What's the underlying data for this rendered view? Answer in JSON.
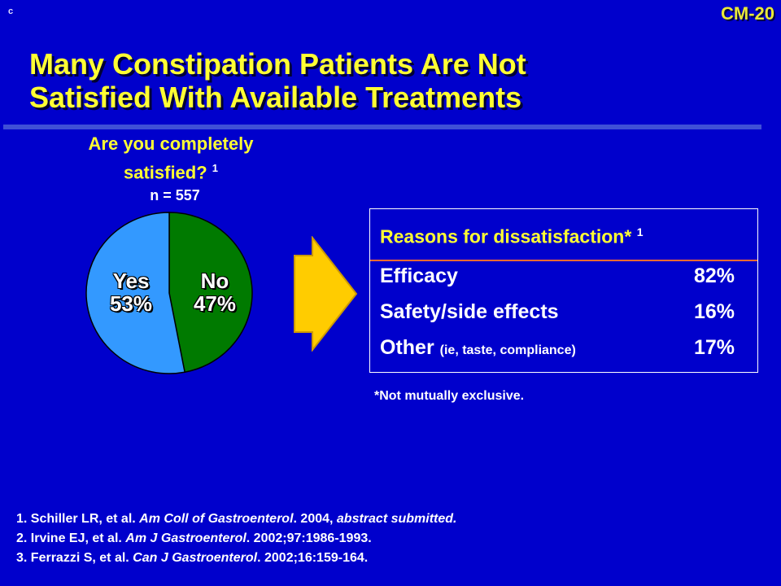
{
  "corner_mark": "c",
  "slide_id": "CM-20",
  "title": {
    "line1": "Many Constipation Patients Are Not",
    "line2": "Satisfied With Available Treatments"
  },
  "question": {
    "line1": "Are you completely",
    "line2": "satisfied?",
    "ref": "1",
    "n": "n = 557"
  },
  "colors": {
    "background": "#0000cc",
    "title": "#ffff33",
    "yes_slice": "#3399ff",
    "no_slice": "#007a00",
    "arrow": "#ffcc00",
    "rule": "#ff6a33"
  },
  "chart_data": {
    "type": "pie",
    "slices": [
      {
        "label": "Yes",
        "value": 53,
        "value_label": "53%",
        "color": "#3399ff"
      },
      {
        "label": "No",
        "value": 47,
        "value_label": "47%",
        "color": "#007a00"
      }
    ]
  },
  "reasons": {
    "title": "Reasons for dissatisfaction*",
    "ref": "1",
    "items": [
      {
        "label": "Efficacy",
        "note": "",
        "value": "82%"
      },
      {
        "label": "Safety/side effects",
        "note": "",
        "value": "16%"
      },
      {
        "label": "Other",
        "note": "(ie, taste, compliance)",
        "value": "17%"
      }
    ]
  },
  "footnote": "*Not mutually exclusive.",
  "references": [
    {
      "prefix": "1. Schiller LR, et al. ",
      "journal": "Am Coll of Gastroenterol",
      "suffix": ". 2004, ",
      "extra_italic": "abstract submitted."
    },
    {
      "prefix": "2. Irvine EJ, et al. ",
      "journal": "Am J Gastroenterol",
      "suffix": ". 2002;97:1986-1993.",
      "extra_italic": ""
    },
    {
      "prefix": "3. Ferrazzi S, et al. ",
      "journal": "Can J Gastroenterol",
      "suffix": ". 2002;16:159-164.",
      "extra_italic": ""
    }
  ]
}
